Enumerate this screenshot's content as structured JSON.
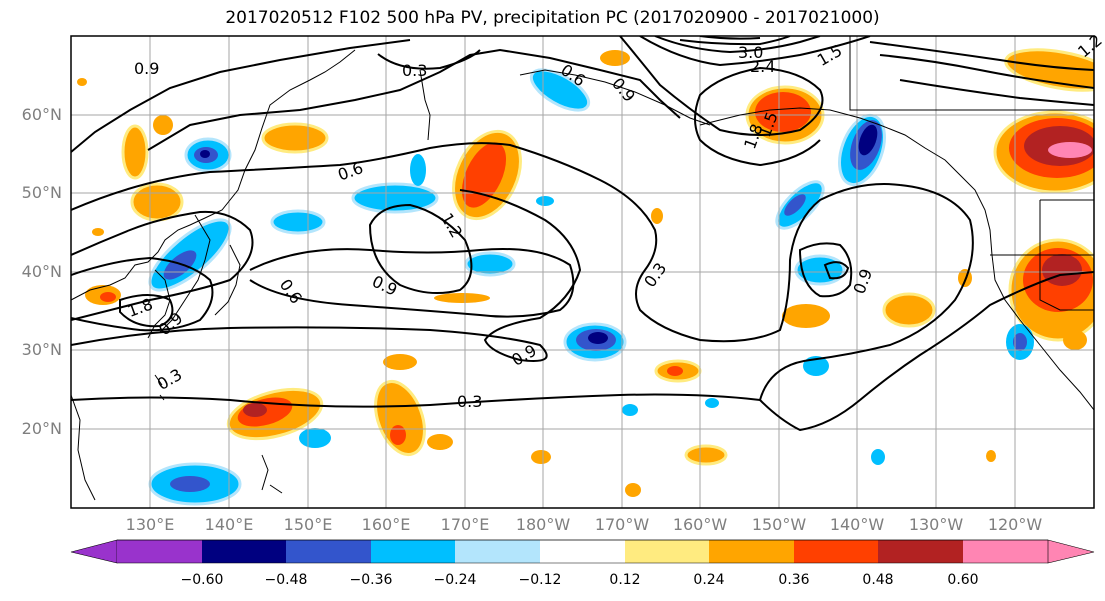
{
  "title": "2017020512 F102 500 hPa PV, precipitation PC (2017020900 - 2017021000)",
  "lat_labels": [
    "60°N",
    "50°N",
    "40°N",
    "30°N",
    "20°N"
  ],
  "lon_labels": [
    "130°E",
    "140°E",
    "150°E",
    "160°E",
    "170°E",
    "180°W",
    "170°W",
    "160°W",
    "150°W",
    "140°W",
    "130°W",
    "120°W"
  ],
  "contour_labels": [
    "0.9",
    "0.3",
    "0.6",
    "0.9",
    "3.0",
    "2.4",
    "1.5",
    "1.2",
    "0.6",
    "1.8",
    "1.5",
    "1.2",
    "0.9",
    "0.6",
    "0.3",
    "0.9",
    "1.8",
    "0.9",
    "0.9",
    "0.3",
    "0.3"
  ],
  "colorbar": {
    "colors": [
      "#9933cc",
      "#000080",
      "#3355cc",
      "#00bfff",
      "#b3e5fc",
      "#ffffff",
      "#ffeb80",
      "#ffa500",
      "#ff4000",
      "#b22222",
      "#ff85b3"
    ],
    "labels": [
      "−0.60",
      "−0.48",
      "−0.36",
      "−0.24",
      "−0.12",
      "0.12",
      "0.24",
      "0.36",
      "0.48",
      "0.60"
    ]
  }
}
